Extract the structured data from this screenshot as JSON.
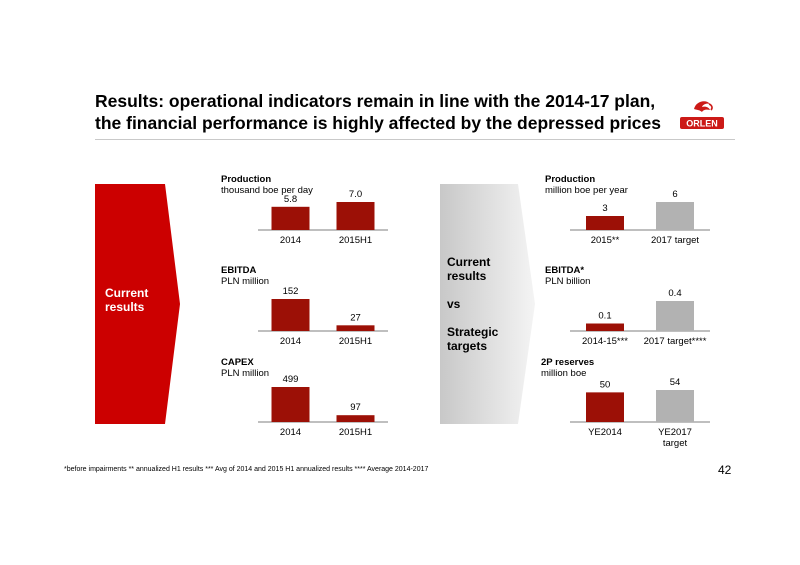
{
  "slide": {
    "title_line1": "Results: operational indicators remain in line with the 2014-17 plan,",
    "title_line2": "the financial performance is highly affected by the depressed prices",
    "logo_text": "ORLEN",
    "left_arrow_line1": "Current",
    "left_arrow_line2": "results",
    "middle_line1": "Current",
    "middle_line2": "results",
    "middle_line3": "vs",
    "middle_line4": "Strategic",
    "middle_line5": "targets",
    "footnote": "*before impairments ** annualized H1 results *** Avg of 2014 and 2015 H1 annualized results **** Average 2014-2017",
    "page_number": "42",
    "colors": {
      "accent_red": "#cc0000",
      "bar_dark_red": "#9c1006",
      "bar_grey": "#b2b2b2",
      "logo_red": "#cc1a17"
    }
  },
  "chart_data": [
    {
      "type": "bar",
      "title": "Production",
      "subtitle": "thousand boe per day",
      "categories": [
        "2014",
        "2015H1"
      ],
      "values": [
        5.8,
        7.0
      ],
      "value_labels": [
        "5.8",
        "7.0"
      ],
      "colors": [
        "#9c1006",
        "#9c1006"
      ]
    },
    {
      "type": "bar",
      "title": "EBITDA",
      "subtitle": "PLN million",
      "categories": [
        "2014",
        "2015H1"
      ],
      "values": [
        152,
        27
      ],
      "value_labels": [
        "152",
        "27"
      ],
      "colors": [
        "#9c1006",
        "#9c1006"
      ]
    },
    {
      "type": "bar",
      "title": "CAPEX",
      "subtitle": "PLN million",
      "categories": [
        "2014",
        "2015H1"
      ],
      "values": [
        499,
        97
      ],
      "value_labels": [
        "499",
        "97"
      ],
      "colors": [
        "#9c1006",
        "#9c1006"
      ]
    },
    {
      "type": "bar",
      "title": "Production",
      "subtitle": "million boe per year",
      "categories": [
        "2015**",
        "2017 target"
      ],
      "values": [
        3,
        6
      ],
      "value_labels": [
        "3",
        "6"
      ],
      "colors": [
        "#9c1006",
        "#b2b2b2"
      ]
    },
    {
      "type": "bar",
      "title": "EBITDA*",
      "subtitle": "PLN billion",
      "categories": [
        "2014-15***",
        "2017 target****"
      ],
      "values": [
        0.1,
        0.4
      ],
      "value_labels": [
        "0.1",
        "0.4"
      ],
      "colors": [
        "#9c1006",
        "#b2b2b2"
      ]
    },
    {
      "type": "bar",
      "title": "2P reserves",
      "subtitle": "million boe",
      "categories": [
        "YE2014",
        "YE2017 target"
      ],
      "values": [
        50,
        54
      ],
      "value_labels": [
        "50",
        "54"
      ],
      "colors": [
        "#9c1006",
        "#b2b2b2"
      ]
    }
  ]
}
